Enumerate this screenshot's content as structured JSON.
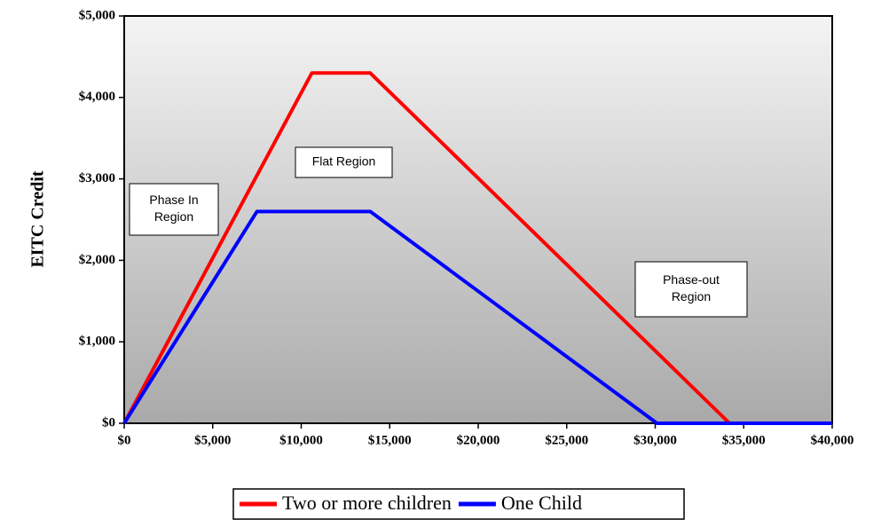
{
  "chart_data": {
    "type": "line",
    "y_label": "EITC Credit",
    "series": [
      {
        "name": "Two or more children",
        "color": "#ff0000",
        "x": [
          0,
          10600,
          13900,
          34200,
          40000
        ],
        "values": [
          0,
          4300,
          4300,
          0,
          0
        ]
      },
      {
        "name": "One Child",
        "color": "#0000ff",
        "x": [
          0,
          7500,
          13900,
          30100,
          40000
        ],
        "values": [
          0,
          2600,
          2600,
          0,
          0
        ]
      }
    ],
    "xlim": [
      0,
      40000
    ],
    "xticks": [
      {
        "value": 0,
        "label": "$0"
      },
      {
        "value": 5000,
        "label": "$5,000"
      },
      {
        "value": 10000,
        "label": "$10,000"
      },
      {
        "value": 15000,
        "label": "$15,000"
      },
      {
        "value": 20000,
        "label": "$20,000"
      },
      {
        "value": 25000,
        "label": "$25,000"
      },
      {
        "value": 30000,
        "label": "$30,000"
      },
      {
        "value": 35000,
        "label": "$35,000"
      },
      {
        "value": 40000,
        "label": "$40,000"
      }
    ],
    "ylim": [
      0,
      5000
    ],
    "yticks": [
      {
        "value": 0,
        "label": "$0"
      },
      {
        "value": 1000,
        "label": "$1,000"
      },
      {
        "value": 2000,
        "label": "$2,000"
      },
      {
        "value": 3000,
        "label": "$3,000"
      },
      {
        "value": 4000,
        "label": "$4,000"
      },
      {
        "value": 5000,
        "label": "$5,000"
      }
    ],
    "annotations": [
      [
        "Phase In",
        "Region"
      ],
      [
        "Flat Region"
      ],
      [
        "Phase-out",
        "Region"
      ]
    ]
  }
}
